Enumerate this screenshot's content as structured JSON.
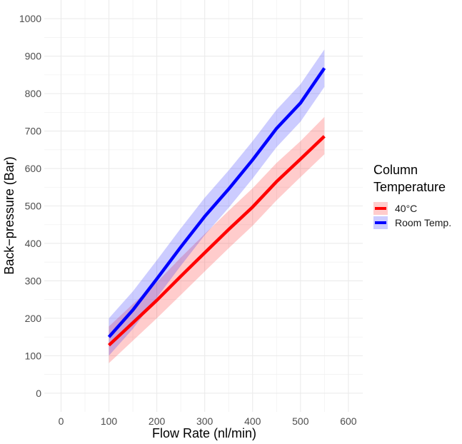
{
  "chart_data": {
    "type": "line",
    "xlabel": "Flow Rate (nl/min)",
    "ylabel": "Back−pressure (Bar)",
    "xlim": [
      -35,
      630
    ],
    "ylim": [
      -50,
      1050
    ],
    "xticks": [
      0,
      100,
      200,
      300,
      400,
      500,
      600
    ],
    "yticks": [
      0,
      100,
      200,
      300,
      400,
      500,
      600,
      700,
      800,
      900,
      1000
    ],
    "grid": true,
    "legend": {
      "title": "Column Temperature",
      "title_lines": [
        "Column",
        "Temperature"
      ],
      "placement": "right"
    },
    "x": [
      100,
      150,
      200,
      250,
      300,
      350,
      400,
      450,
      500,
      550
    ],
    "series": [
      {
        "name": "40°C",
        "color": "#ff0000",
        "values": [
          128,
          188,
          248,
          312,
          375,
          437,
          497,
          565,
          625,
          686
        ],
        "lower": [
          80,
          140,
          200,
          262,
          325,
          387,
          447,
          515,
          577,
          638
        ],
        "upper": [
          178,
          238,
          296,
          362,
          425,
          487,
          547,
          615,
          673,
          738
        ]
      },
      {
        "name": "Room Temp.",
        "color": "#0000ff",
        "values": [
          150,
          222,
          305,
          390,
          472,
          545,
          623,
          707,
          775,
          868
        ],
        "lower": [
          100,
          172,
          255,
          340,
          422,
          495,
          573,
          657,
          725,
          818
        ],
        "upper": [
          200,
          272,
          355,
          440,
          522,
          595,
          673,
          757,
          825,
          918
        ]
      }
    ]
  }
}
